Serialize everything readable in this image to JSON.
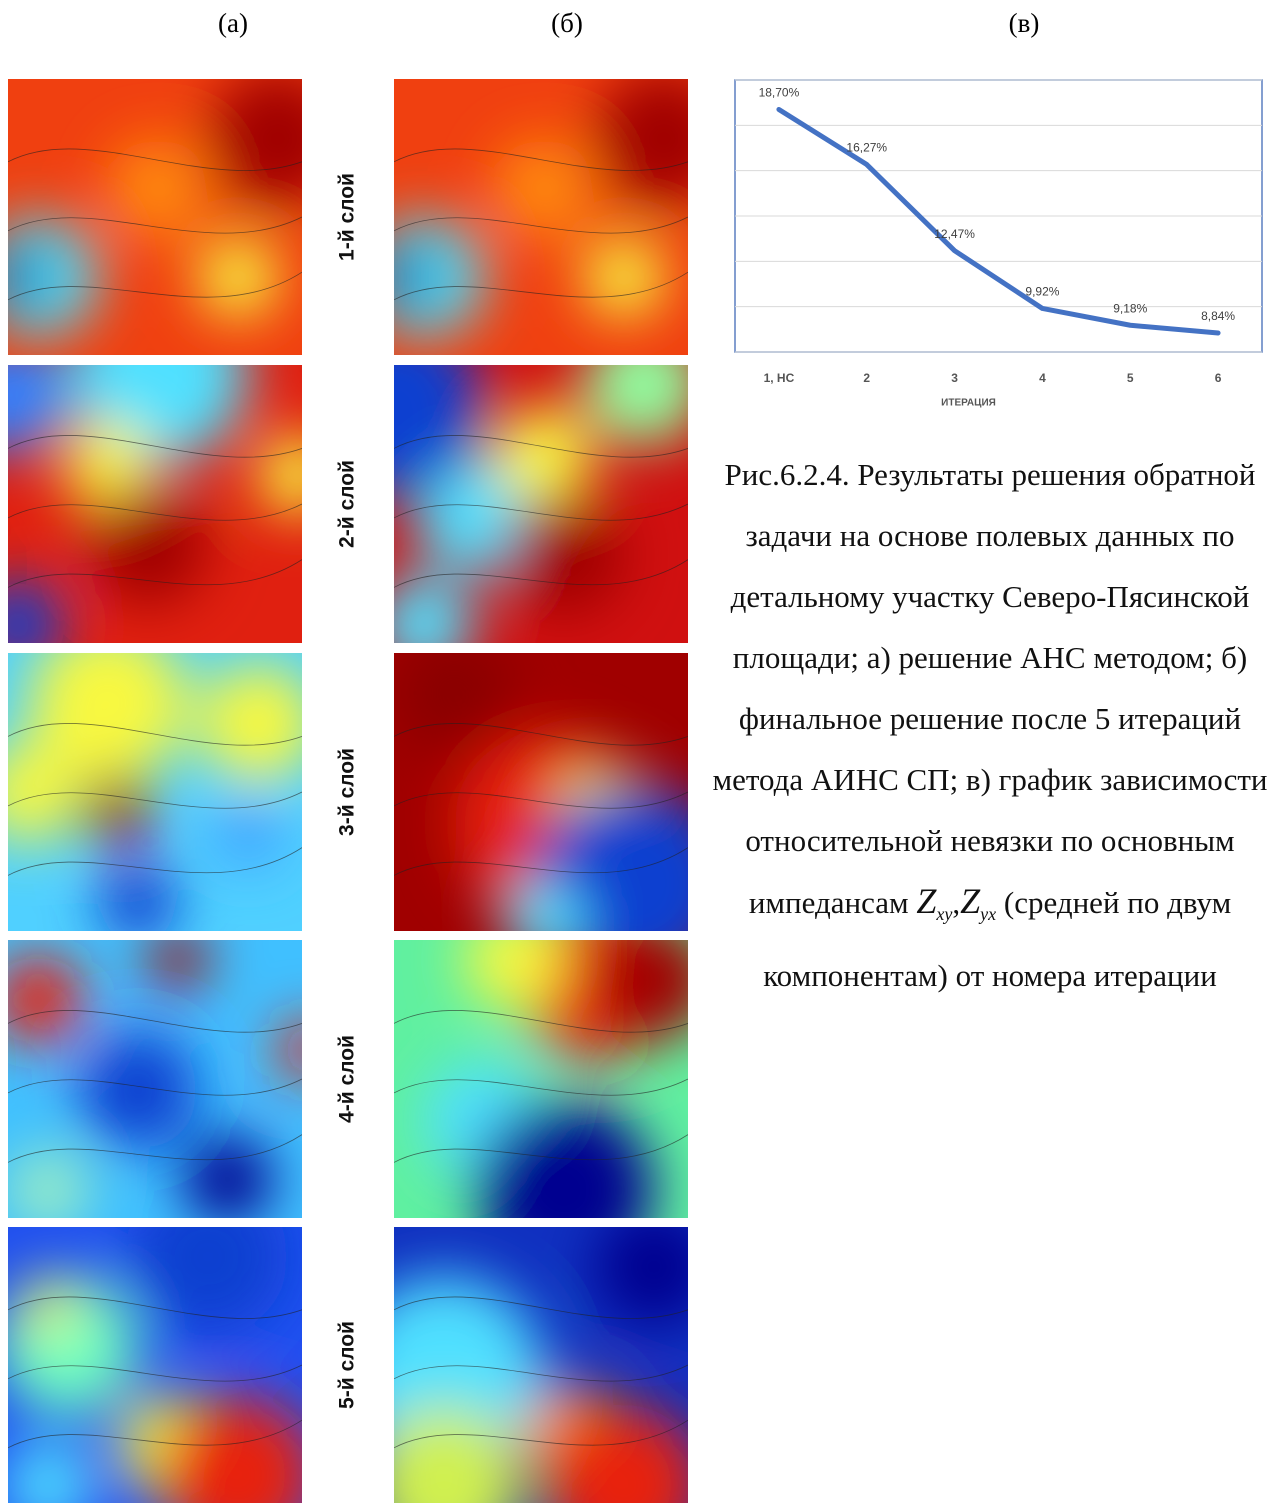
{
  "panel_labels": [
    "(а)",
    "(б)",
    "(в)"
  ],
  "layers": [
    "1-й слой",
    "2-й слой",
    "3-й слой",
    "4-й слой",
    "5-й слой"
  ],
  "chart_data": {
    "type": "line",
    "categories": [
      "1, НС",
      "2",
      "3",
      "4",
      "5",
      "6"
    ],
    "values": [
      18.7,
      16.27,
      12.47,
      9.92,
      9.18,
      8.84
    ],
    "value_labels": [
      "18,70%",
      "16,27%",
      "12,47%",
      "9,92%",
      "9,18%",
      "8,84%"
    ],
    "x_label": "ИТЕРАЦИЯ",
    "ylim": [
      8,
      20
    ],
    "yticks": [
      8,
      10,
      12,
      14,
      16,
      18,
      20
    ],
    "grid": true,
    "color": "#4472c4"
  },
  "caption": {
    "before": "Рис.6.2.4. Результаты решения обратной задачи на основе полевых данных по детальному участку Северо-Пясинской площади; а) решение АНС методом; б) финальное решение после 5 итераций метода АИНС СП; в) график зависимости относительной невязки по основным импедансам",
    "symbol": "Z",
    "sub1": "xy",
    "separator": ",",
    "sub2": "yx",
    "after": "(средней по двум компонентам) от номера итерации"
  }
}
